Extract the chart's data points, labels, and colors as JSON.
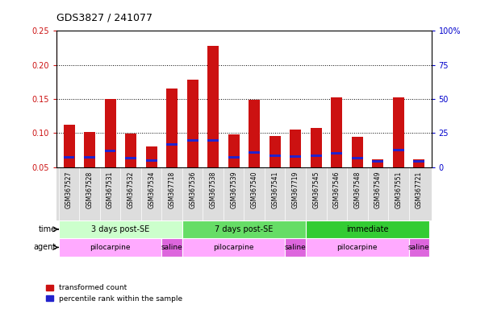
{
  "title": "GDS3827 / 241077",
  "samples": [
    "GSM367527",
    "GSM367528",
    "GSM367531",
    "GSM367532",
    "GSM367534",
    "GSM367718",
    "GSM367536",
    "GSM367538",
    "GSM367539",
    "GSM367540",
    "GSM367541",
    "GSM367719",
    "GSM367545",
    "GSM367546",
    "GSM367548",
    "GSM367549",
    "GSM367551",
    "GSM367721"
  ],
  "red_values": [
    0.112,
    0.102,
    0.15,
    0.099,
    0.08,
    0.165,
    0.178,
    0.228,
    0.098,
    0.149,
    0.096,
    0.105,
    0.107,
    0.152,
    0.095,
    0.062,
    0.153,
    0.062
  ],
  "blue_values": [
    0.065,
    0.065,
    0.074,
    0.063,
    0.06,
    0.083,
    0.089,
    0.089,
    0.065,
    0.072,
    0.067,
    0.066,
    0.067,
    0.07,
    0.063,
    0.059,
    0.075,
    0.059
  ],
  "ylim_left": [
    0.05,
    0.25
  ],
  "ylim_right": [
    0,
    100
  ],
  "yticks_left": [
    0.05,
    0.1,
    0.15,
    0.2,
    0.25
  ],
  "yticks_right": [
    0,
    25,
    50,
    75,
    100
  ],
  "ytick_right_labels": [
    "0",
    "25",
    "50",
    "75",
    "100%"
  ],
  "time_groups": [
    {
      "label": "3 days post-SE",
      "start": 0,
      "end": 6,
      "color": "#ccffcc"
    },
    {
      "label": "7 days post-SE",
      "start": 6,
      "end": 12,
      "color": "#66dd66"
    },
    {
      "label": "immediate",
      "start": 12,
      "end": 18,
      "color": "#33cc33"
    }
  ],
  "agent_groups": [
    {
      "label": "pilocarpine",
      "start": 0,
      "end": 5,
      "color": "#ffaaff"
    },
    {
      "label": "saline",
      "start": 5,
      "end": 6,
      "color": "#dd66dd"
    },
    {
      "label": "pilocarpine",
      "start": 6,
      "end": 11,
      "color": "#ffaaff"
    },
    {
      "label": "saline",
      "start": 11,
      "end": 12,
      "color": "#dd66dd"
    },
    {
      "label": "pilocarpine",
      "start": 12,
      "end": 17,
      "color": "#ffaaff"
    },
    {
      "label": "saline",
      "start": 17,
      "end": 18,
      "color": "#dd66dd"
    }
  ],
  "bar_width": 0.55,
  "red_color": "#cc1111",
  "blue_color": "#2222cc",
  "bg_color": "#ffffff",
  "tick_color_left": "#cc1111",
  "tick_color_right": "#0000cc",
  "legend_red": "transformed count",
  "legend_blue": "percentile rank within the sample",
  "grid_dotted_vals": [
    0.1,
    0.15,
    0.2
  ],
  "xticklabel_bg": "#dddddd"
}
